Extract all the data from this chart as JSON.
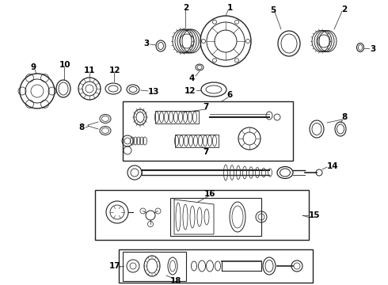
{
  "bg_color": "#ffffff",
  "line_color": "#222222",
  "fig_width": 4.9,
  "fig_height": 3.6,
  "dpi": 100,
  "parts": {
    "label_fontsize": 7.5
  }
}
